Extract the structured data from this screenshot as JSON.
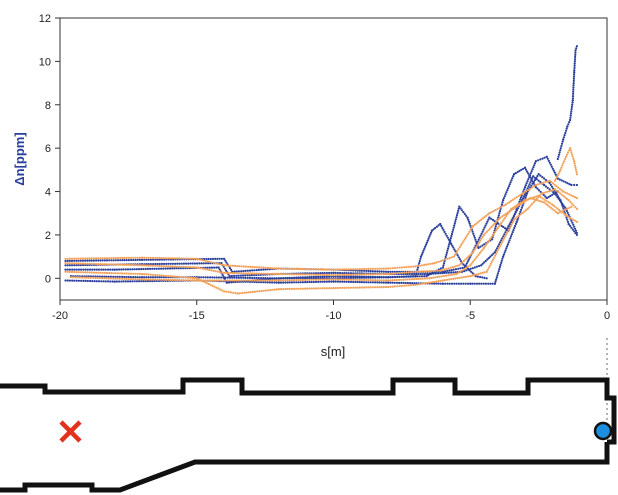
{
  "chart_data": {
    "type": "scatter",
    "title": "",
    "xlabel": "s[m]",
    "ylabel": "Δn[ppm]",
    "xlim": [
      -20,
      0
    ],
    "ylim": [
      -1,
      12
    ],
    "xticks": [
      -20,
      -15,
      -10,
      -5,
      0
    ],
    "yticks": [
      0,
      2,
      4,
      6,
      8,
      10,
      12
    ],
    "grid": false,
    "legend": "none",
    "colors": {
      "blue": "#2a3f9c",
      "orange": "#f2a25a",
      "axis": "#333333"
    },
    "series": [
      {
        "color": "blue",
        "points": [
          [
            -19.8,
            0.8
          ],
          [
            -17,
            0.85
          ],
          [
            -14,
            0.9
          ],
          [
            -13.7,
            0.3
          ],
          [
            -12,
            0.45
          ],
          [
            -10,
            0.4
          ],
          [
            -8,
            0.3
          ],
          [
            -6,
            0.3
          ],
          [
            -5.2,
            0.5
          ],
          [
            -4.8,
            1.5
          ],
          [
            -4.3,
            2.8
          ],
          [
            -3.6,
            2.2
          ],
          [
            -3.0,
            4.2
          ],
          [
            -2.6,
            5.4
          ],
          [
            -2.2,
            5.6
          ],
          [
            -1.8,
            4.6
          ],
          [
            -1.3,
            4.3
          ],
          [
            -1.1,
            4.3
          ]
        ]
      },
      {
        "color": "blue",
        "points": [
          [
            -19.8,
            0.6
          ],
          [
            -17,
            0.65
          ],
          [
            -14.1,
            0.7
          ],
          [
            -13.8,
            0.1
          ],
          [
            -12,
            0.2
          ],
          [
            -10,
            0.25
          ],
          [
            -8,
            0.2
          ],
          [
            -6.5,
            0.2
          ],
          [
            -5.3,
            0.3
          ],
          [
            -4.6,
            0.6
          ],
          [
            -4.1,
            1.2
          ],
          [
            -3.6,
            2.4
          ],
          [
            -3.1,
            3.6
          ],
          [
            -2.7,
            4.7
          ],
          [
            -2.3,
            4.3
          ],
          [
            -1.9,
            3.9
          ],
          [
            -1.5,
            3.2
          ],
          [
            -1.1,
            2.1
          ]
        ]
      },
      {
        "color": "blue",
        "points": [
          [
            -19.8,
            0.4
          ],
          [
            -18,
            0.4
          ],
          [
            -14.2,
            0.5
          ],
          [
            -13.9,
            -0.2
          ],
          [
            -12,
            0.0
          ],
          [
            -10,
            0.1
          ],
          [
            -8,
            0.05
          ],
          [
            -7,
            0.1
          ],
          [
            -6.8,
            1.0
          ],
          [
            -6.4,
            2.2
          ],
          [
            -6.1,
            2.5
          ],
          [
            -5.7,
            1.6
          ],
          [
            -5.3,
            0.7
          ],
          [
            -4.8,
            0.1
          ],
          [
            -4.4,
            0.0
          ]
        ]
      },
      {
        "color": "blue",
        "points": [
          [
            -19.8,
            -0.1
          ],
          [
            -18,
            -0.15
          ],
          [
            -15,
            -0.1
          ],
          [
            -12,
            -0.2
          ],
          [
            -10,
            -0.15
          ],
          [
            -8,
            -0.2
          ],
          [
            -6,
            -0.25
          ],
          [
            -5,
            -0.25
          ],
          [
            -4.1,
            -0.25
          ],
          [
            -3.8,
            1.0
          ],
          [
            -3.3,
            2.6
          ],
          [
            -2.9,
            4.0
          ],
          [
            -2.5,
            4.8
          ],
          [
            -2.1,
            4.4
          ],
          [
            -1.7,
            3.6
          ],
          [
            -1.4,
            2.5
          ],
          [
            -1.1,
            2.0
          ]
        ]
      },
      {
        "color": "blue",
        "points": [
          [
            -19.6,
            0.1
          ],
          [
            -17,
            0.05
          ],
          [
            -15,
            0.05
          ],
          [
            -12,
            0.0
          ],
          [
            -10,
            0.0
          ],
          [
            -8,
            0.05
          ],
          [
            -6.6,
            0.1
          ],
          [
            -6.0,
            0.5
          ],
          [
            -5.4,
            3.3
          ],
          [
            -5.1,
            2.8
          ],
          [
            -4.7,
            1.4
          ],
          [
            -4.2,
            1.8
          ],
          [
            -3.8,
            3.6
          ],
          [
            -3.4,
            4.8
          ],
          [
            -3.0,
            5.1
          ],
          [
            -2.6,
            4.2
          ],
          [
            -2.2,
            3.7
          ],
          [
            -1.8,
            4.0
          ]
        ]
      },
      {
        "color": "blue",
        "points": [
          [
            -1.8,
            5.5
          ],
          [
            -1.6,
            6.4
          ],
          [
            -1.45,
            7.0
          ],
          [
            -1.35,
            7.3
          ],
          [
            -1.25,
            8.2
          ],
          [
            -1.2,
            9.5
          ],
          [
            -1.15,
            10.5
          ],
          [
            -1.1,
            10.7
          ]
        ]
      },
      {
        "color": "orange",
        "points": [
          [
            -19.8,
            0.9
          ],
          [
            -17,
            0.95
          ],
          [
            -15,
            0.9
          ],
          [
            -14,
            0.6
          ],
          [
            -12,
            0.45
          ],
          [
            -10,
            0.4
          ],
          [
            -8,
            0.45
          ],
          [
            -7,
            0.55
          ],
          [
            -6.3,
            0.7
          ],
          [
            -5.6,
            1.0
          ],
          [
            -4.9,
            2.4
          ],
          [
            -4.3,
            3.0
          ],
          [
            -3.7,
            3.4
          ],
          [
            -3.1,
            3.9
          ],
          [
            -2.6,
            4.3
          ],
          [
            -2.1,
            4.5
          ],
          [
            -1.6,
            4.0
          ],
          [
            -1.1,
            3.7
          ]
        ]
      },
      {
        "color": "orange",
        "points": [
          [
            -19.8,
            0.7
          ],
          [
            -17,
            0.6
          ],
          [
            -15,
            0.5
          ],
          [
            -14,
            0.25
          ],
          [
            -12,
            0.2
          ],
          [
            -10,
            0.15
          ],
          [
            -8,
            0.2
          ],
          [
            -7,
            0.3
          ],
          [
            -6.1,
            0.35
          ],
          [
            -5.4,
            0.6
          ],
          [
            -4.9,
            1.2
          ],
          [
            -4.5,
            2.0
          ],
          [
            -3.9,
            2.8
          ],
          [
            -3.3,
            3.3
          ],
          [
            -2.8,
            3.7
          ],
          [
            -2.3,
            3.5
          ],
          [
            -1.8,
            3.0
          ],
          [
            -1.3,
            3.3
          ]
        ]
      },
      {
        "color": "orange",
        "points": [
          [
            -19.8,
            0.3
          ],
          [
            -17,
            0.2
          ],
          [
            -15,
            0.0
          ],
          [
            -14,
            -0.6
          ],
          [
            -13.5,
            -0.7
          ],
          [
            -12,
            -0.5
          ],
          [
            -10,
            -0.45
          ],
          [
            -8,
            -0.4
          ],
          [
            -7,
            -0.3
          ],
          [
            -6,
            -0.1
          ],
          [
            -5,
            0.1
          ],
          [
            -4.4,
            0.3
          ],
          [
            -3.9,
            1.5
          ],
          [
            -3.4,
            2.7
          ],
          [
            -2.9,
            3.2
          ],
          [
            -2.4,
            3.9
          ],
          [
            -1.9,
            4.1
          ],
          [
            -1.4,
            3.6
          ],
          [
            -1.1,
            3.2
          ]
        ]
      },
      {
        "color": "orange",
        "points": [
          [
            -19.6,
            0.05
          ],
          [
            -17,
            -0.05
          ],
          [
            -15,
            -0.1
          ],
          [
            -12,
            -0.1
          ],
          [
            -10,
            -0.05
          ],
          [
            -8,
            -0.1
          ],
          [
            -6.5,
            0.0
          ],
          [
            -5.5,
            0.2
          ],
          [
            -5.0,
            0.6
          ],
          [
            -4.5,
            1.4
          ],
          [
            -4.0,
            2.3
          ],
          [
            -3.5,
            3.2
          ],
          [
            -3.0,
            3.6
          ],
          [
            -2.5,
            3.8
          ],
          [
            -2.0,
            3.4
          ],
          [
            -1.5,
            2.9
          ],
          [
            -1.1,
            2.6
          ]
        ]
      },
      {
        "color": "orange",
        "points": [
          [
            -1.9,
            4.5
          ],
          [
            -1.7,
            5.0
          ],
          [
            -1.5,
            5.6
          ],
          [
            -1.35,
            6.0
          ],
          [
            -1.2,
            5.4
          ],
          [
            -1.1,
            4.8
          ]
        ]
      }
    ]
  },
  "diagram": {
    "source_marker": "red-x",
    "detector_marker": "blue-dot",
    "colors": {
      "wall": "#111111",
      "source": "#e2311d",
      "detector": "#1d8fe0",
      "dash": "#9a9a9a"
    }
  }
}
